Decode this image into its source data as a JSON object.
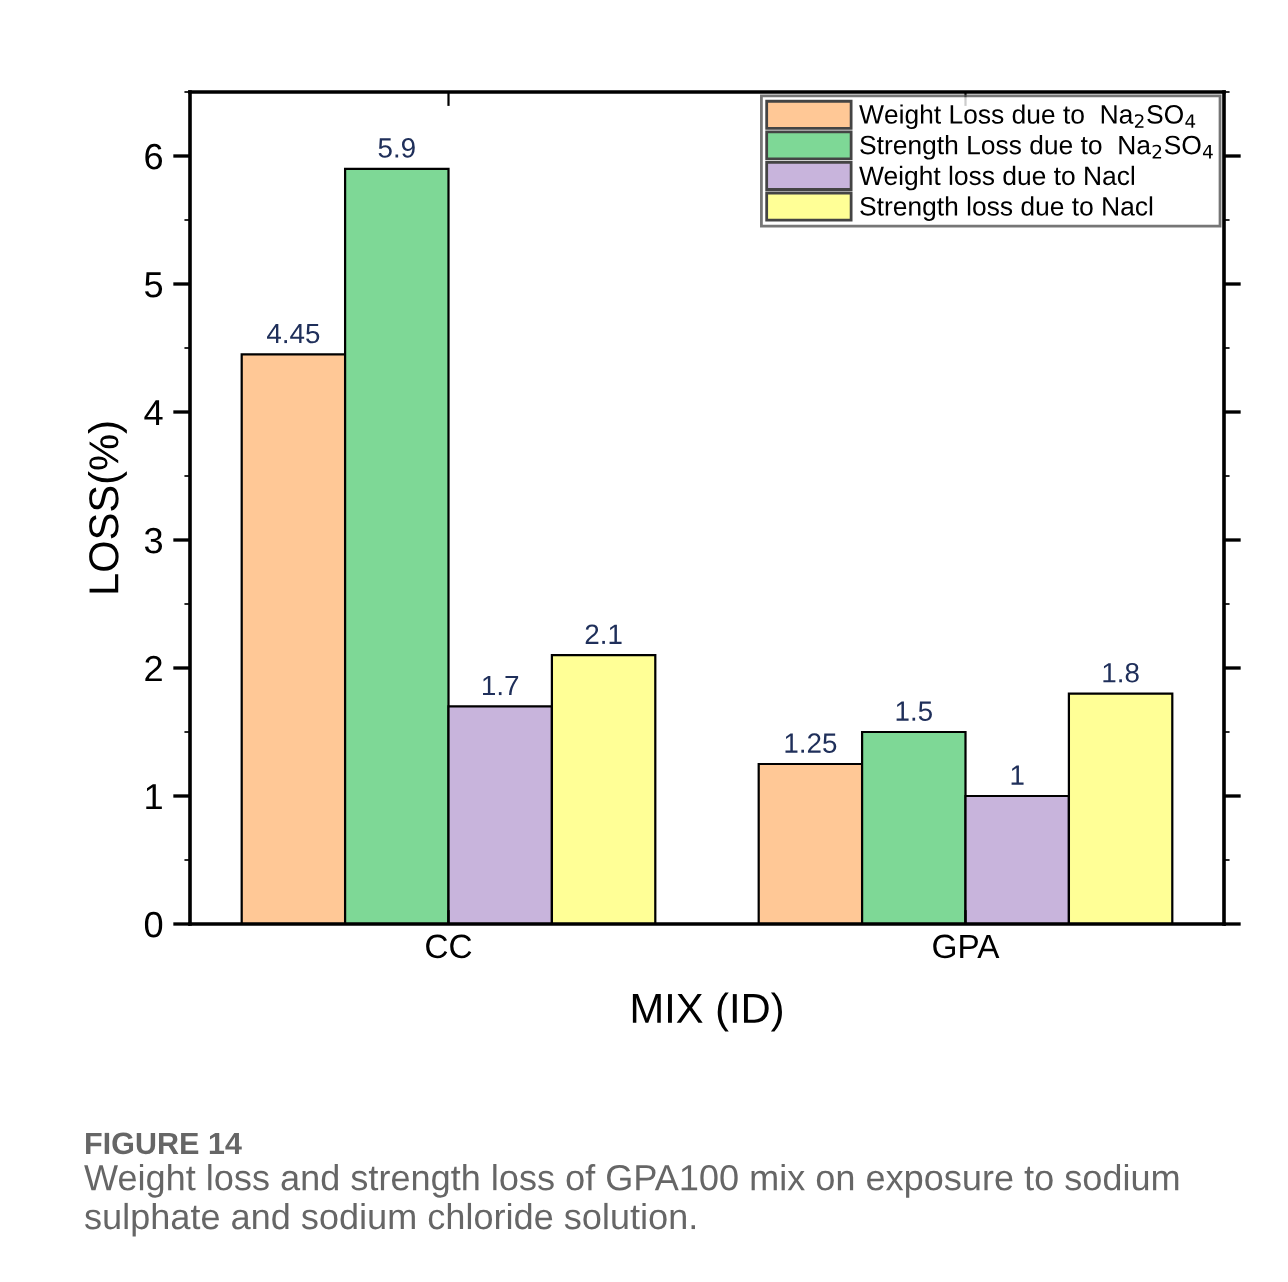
{
  "chart_data": {
    "type": "bar",
    "xlabel": "MIX (ID)",
    "ylabel": "LOSS(%)",
    "categories": [
      "CC",
      "GPA"
    ],
    "series": [
      {
        "name": "Weight Loss due to  Na$_{2}$SO$_{4}$",
        "color": "#ffc896",
        "values": [
          4.45,
          1.25
        ]
      },
      {
        "name": "Strength Loss due to  Na$_{2}$SO$_{4}$",
        "color": "#7ed896",
        "values": [
          5.9,
          1.5
        ]
      },
      {
        "name": "Weight loss due to Nacl",
        "color": "#c8b4dc",
        "values": [
          1.7,
          1
        ]
      },
      {
        "name": "Strength loss due to Nacl",
        "color": "#ffff96",
        "values": [
          2.1,
          1.8
        ]
      }
    ],
    "ylim": [
      0,
      6.5
    ],
    "yticks": [
      0,
      1,
      2,
      3,
      4,
      5,
      6
    ],
    "data_labels": true,
    "legend": "top right",
    "grid": false,
    "annotations": [
      "FIGURE 14",
      "Weight loss and strength loss of GPA100 mix on exposure to sodium sulphate and sodium chloride solution."
    ]
  }
}
